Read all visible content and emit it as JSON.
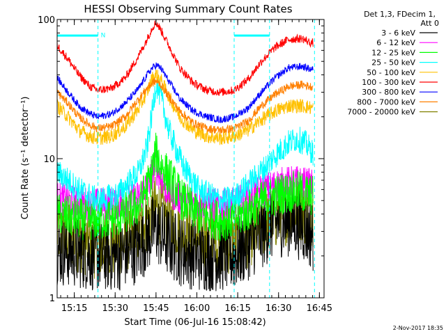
{
  "chart_data": {
    "type": "line",
    "title": "HESSI Observing Summary Count Rates",
    "xlabel": "Start Time (06-Jul-16 15:08:42)",
    "ylabel": "Count Rate (s⁻¹ detector⁻¹)",
    "y_scale": "log",
    "ylim": [
      1,
      100
    ],
    "xlim_minutes": [
      0,
      98
    ],
    "x_ticks": [
      {
        "label": "15:15",
        "minute": 6.3
      },
      {
        "label": "15:30",
        "minute": 21.3
      },
      {
        "label": "15:45",
        "minute": 36.3
      },
      {
        "label": "16:00",
        "minute": 51.3
      },
      {
        "label": "16:15",
        "minute": 66.3
      },
      {
        "label": "16:30",
        "minute": 81.3
      },
      {
        "label": "16:45",
        "minute": 96.3
      }
    ],
    "y_ticks": [
      {
        "label": "1",
        "value": 1
      },
      {
        "label": "10",
        "value": 10
      },
      {
        "label": "100",
        "value": 100
      }
    ],
    "legend_header": [
      "Det 1,3, FDecim 1,",
      "Att 0"
    ],
    "legend_position": "right",
    "night_marker_label": "N",
    "night_intervals_minutes": [
      [
        0,
        15
      ],
      [
        65,
        78
      ]
    ],
    "saa_dashed_lines_minutes": [
      15,
      65,
      78,
      94.5
    ],
    "series": [
      {
        "name": "3 - 6 keV",
        "color": "#000000",
        "values": [
          [
            0,
            2.2
          ],
          [
            8,
            2.1
          ],
          [
            15,
            2.0
          ],
          [
            22,
            2.0
          ],
          [
            30,
            2.3
          ],
          [
            36,
            3.2
          ],
          [
            40,
            2.6
          ],
          [
            45,
            2.2
          ],
          [
            52,
            2.0
          ],
          [
            60,
            2.0
          ],
          [
            65,
            2.0
          ],
          [
            70,
            2.4
          ],
          [
            76,
            3.0
          ],
          [
            80,
            3.5
          ],
          [
            86,
            3.6
          ],
          [
            90,
            3.3
          ],
          [
            94,
            2.8
          ]
        ]
      },
      {
        "name": "6 - 12 keV",
        "color": "#ff00ff",
        "values": [
          [
            0,
            5.2
          ],
          [
            8,
            4.8
          ],
          [
            15,
            4.7
          ],
          [
            22,
            4.8
          ],
          [
            30,
            5.3
          ],
          [
            34,
            7
          ],
          [
            36,
            9
          ],
          [
            40,
            6
          ],
          [
            45,
            5.2
          ],
          [
            52,
            4.8
          ],
          [
            60,
            4.6
          ],
          [
            65,
            4.7
          ],
          [
            70,
            5.3
          ],
          [
            76,
            6.0
          ],
          [
            82,
            6.6
          ],
          [
            88,
            6.8
          ],
          [
            94,
            6.4
          ]
        ]
      },
      {
        "name": "12 - 25 keV",
        "color": "#00ff00",
        "values": [
          [
            0,
            4.0
          ],
          [
            8,
            3.7
          ],
          [
            15,
            3.6
          ],
          [
            22,
            3.8
          ],
          [
            30,
            4.6
          ],
          [
            34,
            7
          ],
          [
            36.3,
            11
          ],
          [
            38,
            9
          ],
          [
            42,
            7
          ],
          [
            46,
            5.0
          ],
          [
            52,
            4.0
          ],
          [
            60,
            3.6
          ],
          [
            65,
            3.7
          ],
          [
            70,
            4.2
          ],
          [
            76,
            5.0
          ],
          [
            82,
            5.6
          ],
          [
            88,
            5.8
          ],
          [
            94,
            5.4
          ]
        ]
      },
      {
        "name": "25 - 50 keV",
        "color": "#00ffff",
        "values": [
          [
            0,
            8.0
          ],
          [
            4,
            7.0
          ],
          [
            8,
            6.0
          ],
          [
            15,
            5.0
          ],
          [
            22,
            5.5
          ],
          [
            30,
            8.0
          ],
          [
            33,
            12
          ],
          [
            35,
            22
          ],
          [
            36.3,
            35
          ],
          [
            38,
            28
          ],
          [
            41,
            16
          ],
          [
            46,
            9
          ],
          [
            52,
            6.0
          ],
          [
            60,
            5.0
          ],
          [
            65,
            5.2
          ],
          [
            70,
            6.5
          ],
          [
            76,
            8.5
          ],
          [
            80,
            10.5
          ],
          [
            85,
            13
          ],
          [
            88,
            14
          ],
          [
            91,
            13
          ],
          [
            94,
            11
          ]
        ]
      },
      {
        "name": "50 - 100 keV",
        "color": "#ffc000",
        "values": [
          [
            0,
            24
          ],
          [
            4,
            20
          ],
          [
            8,
            16
          ],
          [
            12,
            14.5
          ],
          [
            15,
            14
          ],
          [
            20,
            14.5
          ],
          [
            25,
            17
          ],
          [
            30,
            23
          ],
          [
            33,
            30
          ],
          [
            35,
            38
          ],
          [
            36.3,
            40
          ],
          [
            38,
            37
          ],
          [
            41,
            28
          ],
          [
            45,
            20
          ],
          [
            50,
            16
          ],
          [
            55,
            14.5
          ],
          [
            60,
            14
          ],
          [
            65,
            14.5
          ],
          [
            70,
            16
          ],
          [
            75,
            19
          ],
          [
            80,
            22
          ],
          [
            85,
            24
          ],
          [
            90,
            24
          ],
          [
            94,
            23
          ]
        ]
      },
      {
        "name": "100 - 300 keV",
        "color": "#ff0000",
        "values": [
          [
            0,
            65
          ],
          [
            4,
            52
          ],
          [
            8,
            40
          ],
          [
            12,
            33
          ],
          [
            15,
            31
          ],
          [
            20,
            32
          ],
          [
            25,
            38
          ],
          [
            30,
            55
          ],
          [
            33,
            72
          ],
          [
            35,
            88
          ],
          [
            36.3,
            95
          ],
          [
            38,
            85
          ],
          [
            41,
            65
          ],
          [
            45,
            45
          ],
          [
            50,
            35
          ],
          [
            55,
            31
          ],
          [
            60,
            30
          ],
          [
            65,
            31
          ],
          [
            70,
            37
          ],
          [
            75,
            50
          ],
          [
            80,
            63
          ],
          [
            85,
            72
          ],
          [
            90,
            73
          ],
          [
            93,
            68
          ]
        ]
      },
      {
        "name": "300 - 800 keV",
        "color": "#0000ff",
        "values": [
          [
            0,
            38
          ],
          [
            4,
            30
          ],
          [
            8,
            24
          ],
          [
            12,
            21
          ],
          [
            15,
            20
          ],
          [
            20,
            21
          ],
          [
            25,
            25
          ],
          [
            30,
            32
          ],
          [
            33,
            40
          ],
          [
            35,
            45
          ],
          [
            36.3,
            47
          ],
          [
            38,
            45
          ],
          [
            41,
            36
          ],
          [
            45,
            27
          ],
          [
            50,
            22
          ],
          [
            55,
            20
          ],
          [
            60,
            19
          ],
          [
            65,
            20
          ],
          [
            70,
            23
          ],
          [
            75,
            30
          ],
          [
            80,
            38
          ],
          [
            85,
            45
          ],
          [
            90,
            46
          ],
          [
            93,
            44
          ]
        ]
      },
      {
        "name": "800 - 7000 keV",
        "color": "#ff8000",
        "values": [
          [
            0,
            30
          ],
          [
            4,
            25
          ],
          [
            8,
            20
          ],
          [
            12,
            17.5
          ],
          [
            15,
            16.5
          ],
          [
            20,
            17
          ],
          [
            25,
            20
          ],
          [
            30,
            27
          ],
          [
            33,
            32
          ],
          [
            35,
            35
          ],
          [
            36.3,
            36
          ],
          [
            38,
            34
          ],
          [
            41,
            28
          ],
          [
            45,
            22
          ],
          [
            50,
            18
          ],
          [
            55,
            16.5
          ],
          [
            60,
            16
          ],
          [
            65,
            16.5
          ],
          [
            70,
            18.5
          ],
          [
            75,
            24
          ],
          [
            80,
            29
          ],
          [
            85,
            33
          ],
          [
            90,
            34
          ],
          [
            93,
            33
          ]
        ]
      },
      {
        "name": "7000 - 20000 keV",
        "color": "#808000",
        "values": [
          [
            0,
            3.0
          ],
          [
            8,
            2.6
          ],
          [
            15,
            2.3
          ],
          [
            22,
            2.4
          ],
          [
            30,
            3.0
          ],
          [
            36.3,
            4.5
          ],
          [
            40,
            3.8
          ],
          [
            45,
            3.2
          ],
          [
            52,
            2.7
          ],
          [
            60,
            2.5
          ],
          [
            65,
            2.5
          ],
          [
            70,
            2.8
          ],
          [
            76,
            3.4
          ],
          [
            82,
            4.0
          ],
          [
            88,
            4.3
          ],
          [
            94,
            4.0
          ]
        ]
      }
    ]
  },
  "footer": {
    "timestamp": "2-Nov-2017 18:35"
  }
}
